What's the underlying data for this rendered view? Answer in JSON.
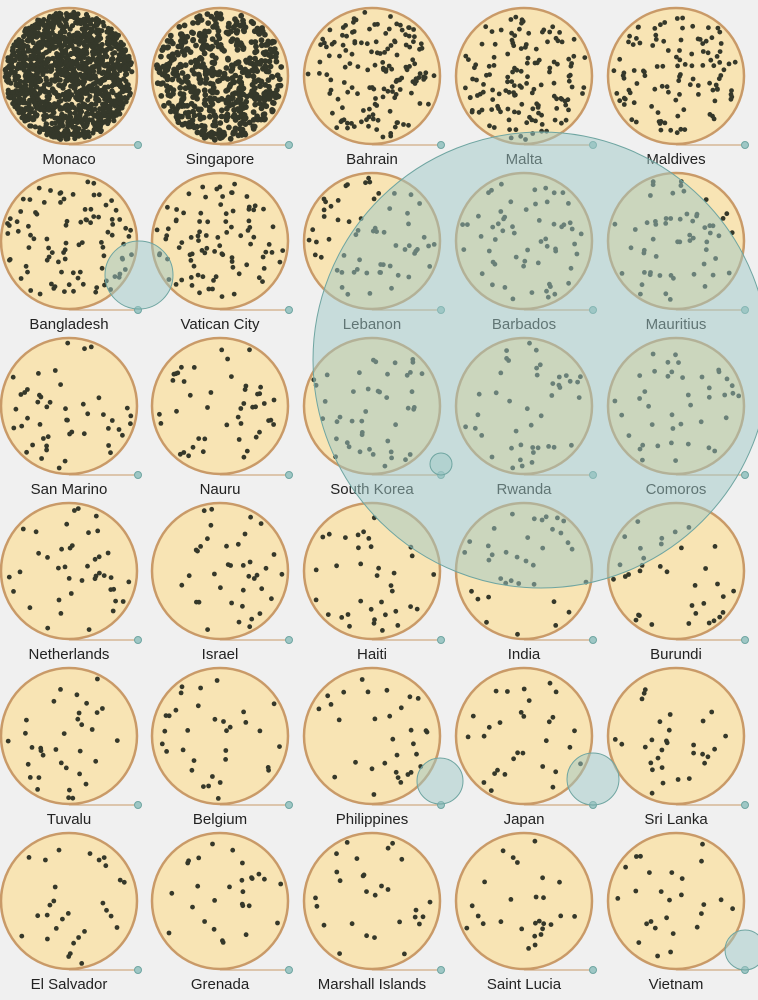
{
  "chart_data": {
    "type": "scatter",
    "title": "",
    "subtitle": "",
    "grid": false,
    "colors": {
      "background": "#f0f0f0",
      "disc_fill": "#f8e4b4",
      "disc_stroke": "#c99a68",
      "dot": "#35382a",
      "overlay_fill": "#9ec7c5",
      "overlay_stroke": "#6fa5a1",
      "label": "#222222"
    },
    "columns": 5,
    "countries": [
      {
        "name": "Monaco",
        "dots": 1400
      },
      {
        "name": "Singapore",
        "dots": 560
      },
      {
        "name": "Bahrain",
        "dots": 150
      },
      {
        "name": "Malta",
        "dots": 140
      },
      {
        "name": "Maldives",
        "dots": 110
      },
      {
        "name": "Bangladesh",
        "dots": 95
      },
      {
        "name": "Vatican City",
        "dots": 90
      },
      {
        "name": "Lebanon",
        "dots": 62
      },
      {
        "name": "Barbados",
        "dots": 60
      },
      {
        "name": "Mauritius",
        "dots": 58
      },
      {
        "name": "San Marino",
        "dots": 48
      },
      {
        "name": "Nauru",
        "dots": 46
      },
      {
        "name": "South Korea",
        "dots": 45
      },
      {
        "name": "Rwanda",
        "dots": 43
      },
      {
        "name": "Comoros",
        "dots": 42
      },
      {
        "name": "Netherlands",
        "dots": 41
      },
      {
        "name": "Israel",
        "dots": 38
      },
      {
        "name": "Haiti",
        "dots": 36
      },
      {
        "name": "India",
        "dots": 36
      },
      {
        "name": "Burundi",
        "dots": 35
      },
      {
        "name": "Tuvalu",
        "dots": 34
      },
      {
        "name": "Belgium",
        "dots": 33
      },
      {
        "name": "Philippines",
        "dots": 31
      },
      {
        "name": "Japan",
        "dots": 30
      },
      {
        "name": "Sri Lanka",
        "dots": 30
      },
      {
        "name": "El Salvador",
        "dots": 29
      },
      {
        "name": "Grenada",
        "dots": 28
      },
      {
        "name": "Marshall Islands",
        "dots": 28
      },
      {
        "name": "Saint Lucia",
        "dots": 27
      },
      {
        "name": "Vietnam",
        "dots": 26
      }
    ]
  }
}
